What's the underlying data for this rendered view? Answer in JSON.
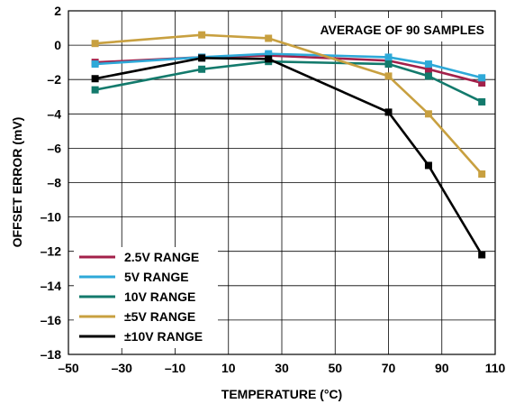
{
  "chart_data": {
    "type": "line",
    "xlabel": "TEMPERATURE (°C)",
    "ylabel": "OFFSET ERROR (mV)",
    "xlim": [
      -50,
      110
    ],
    "ylim": [
      -18,
      2
    ],
    "x_ticks": [
      -50,
      -30,
      -10,
      10,
      30,
      50,
      70,
      90,
      110
    ],
    "x_tick_labels": [
      "–50",
      "–30",
      "–10",
      "10",
      "30",
      "50",
      "70",
      "90",
      "110"
    ],
    "y_ticks": [
      2,
      0,
      -2,
      -4,
      -6,
      -8,
      -10,
      -12,
      -14,
      -16,
      -18
    ],
    "y_tick_labels": [
      "2",
      "0",
      "–2",
      "–4",
      "–6",
      "–8",
      "–10",
      "–12",
      "–14",
      "–16",
      "–18"
    ],
    "grid": true,
    "annotation": "AVERAGE OF 90 SAMPLES",
    "legend_position": "bottom-left",
    "x": [
      -40,
      0,
      25,
      70,
      85,
      105
    ],
    "series": [
      {
        "name": "2.5V RANGE",
        "color": "#a3204a",
        "values": [
          -1.0,
          -0.7,
          -0.6,
          -0.9,
          -1.4,
          -2.2
        ]
      },
      {
        "name": "5V RANGE",
        "color": "#2ea9d8",
        "values": [
          -1.1,
          -0.7,
          -0.5,
          -0.7,
          -1.1,
          -1.9
        ]
      },
      {
        "name": "10V RANGE",
        "color": "#137a6c",
        "values": [
          -2.6,
          -1.4,
          -0.95,
          -1.1,
          -1.8,
          -3.3
        ]
      },
      {
        "name": "±5V RANGE",
        "color": "#c8a040",
        "values": [
          0.1,
          0.6,
          0.4,
          -1.8,
          -4.0,
          -7.5
        ]
      },
      {
        "name": "±10V RANGE",
        "color": "#000000",
        "values": [
          -1.95,
          -0.75,
          -0.8,
          -3.9,
          -7.0,
          -12.2
        ]
      }
    ]
  }
}
